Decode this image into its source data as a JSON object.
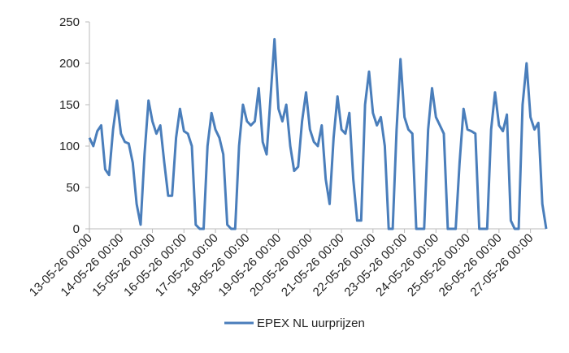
{
  "chart_data": {
    "type": "line",
    "x": [
      "13-05-26 00:00",
      "13-05-26 03:00",
      "13-05-26 06:00",
      "13-05-26 09:00",
      "13-05-26 12:00",
      "13-05-26 15:00",
      "13-05-26 18:00",
      "13-05-26 21:00",
      "14-05-26 00:00",
      "14-05-26 03:00",
      "14-05-26 06:00",
      "14-05-26 09:00",
      "14-05-26 12:00",
      "14-05-26 15:00",
      "14-05-26 18:00",
      "14-05-26 21:00",
      "15-05-26 00:00",
      "15-05-26 03:00",
      "15-05-26 06:00",
      "15-05-26 09:00",
      "15-05-26 12:00",
      "15-05-26 15:00",
      "15-05-26 18:00",
      "15-05-26 21:00",
      "16-05-26 00:00",
      "16-05-26 03:00",
      "16-05-26 06:00",
      "16-05-26 09:00",
      "16-05-26 12:00",
      "16-05-26 15:00",
      "16-05-26 18:00",
      "16-05-26 21:00",
      "17-05-26 00:00",
      "17-05-26 03:00",
      "17-05-26 06:00",
      "17-05-26 09:00",
      "17-05-26 12:00",
      "17-05-26 15:00",
      "17-05-26 18:00",
      "17-05-26 21:00",
      "18-05-26 00:00",
      "18-05-26 03:00",
      "18-05-26 06:00",
      "18-05-26 09:00",
      "18-05-26 12:00",
      "18-05-26 15:00",
      "18-05-26 18:00",
      "18-05-26 21:00",
      "19-05-26 00:00",
      "19-05-26 03:00",
      "19-05-26 06:00",
      "19-05-26 09:00",
      "19-05-26 12:00",
      "19-05-26 15:00",
      "19-05-26 18:00",
      "19-05-26 21:00",
      "20-05-26 00:00",
      "20-05-26 03:00",
      "20-05-26 06:00",
      "20-05-26 09:00",
      "20-05-26 12:00",
      "20-05-26 15:00",
      "20-05-26 18:00",
      "20-05-26 21:00",
      "21-05-26 00:00",
      "21-05-26 03:00",
      "21-05-26 06:00",
      "21-05-26 09:00",
      "21-05-26 12:00",
      "21-05-26 15:00",
      "21-05-26 18:00",
      "21-05-26 21:00",
      "22-05-26 00:00",
      "22-05-26 03:00",
      "22-05-26 06:00",
      "22-05-26 09:00",
      "22-05-26 12:00",
      "22-05-26 15:00",
      "22-05-26 18:00",
      "22-05-26 21:00",
      "23-05-26 00:00",
      "23-05-26 03:00",
      "23-05-26 06:00",
      "23-05-26 09:00",
      "23-05-26 12:00",
      "23-05-26 15:00",
      "23-05-26 18:00",
      "23-05-26 21:00",
      "24-05-26 00:00",
      "24-05-26 03:00",
      "24-05-26 06:00",
      "24-05-26 09:00",
      "24-05-26 12:00",
      "24-05-26 15:00",
      "24-05-26 18:00",
      "24-05-26 21:00",
      "25-05-26 00:00",
      "25-05-26 03:00",
      "25-05-26 06:00",
      "25-05-26 09:00",
      "25-05-26 12:00",
      "25-05-26 15:00",
      "25-05-26 18:00",
      "25-05-26 21:00",
      "26-05-26 00:00",
      "26-05-26 03:00",
      "26-05-26 06:00",
      "26-05-26 09:00",
      "26-05-26 12:00",
      "26-05-26 15:00",
      "26-05-26 18:00",
      "26-05-26 21:00",
      "27-05-26 00:00",
      "27-05-26 03:00",
      "27-05-26 06:00",
      "27-05-26 09:00",
      "27-05-26 12:00"
    ],
    "series": [
      {
        "name": "EPEX NL uurprijzen",
        "color": "#4a7ebb",
        "values": [
          110,
          100,
          118,
          125,
          72,
          65,
          120,
          155,
          115,
          105,
          103,
          80,
          30,
          5,
          90,
          155,
          130,
          115,
          125,
          80,
          40,
          40,
          110,
          145,
          118,
          115,
          100,
          5,
          0,
          0,
          100,
          140,
          120,
          110,
          90,
          5,
          0,
          0,
          100,
          150,
          130,
          125,
          130,
          170,
          105,
          90,
          160,
          229,
          145,
          130,
          150,
          100,
          70,
          75,
          130,
          165,
          120,
          105,
          100,
          125,
          60,
          30,
          110,
          160,
          120,
          115,
          140,
          60,
          10,
          10,
          150,
          190,
          140,
          125,
          135,
          100,
          0,
          0,
          120,
          205,
          135,
          120,
          115,
          0,
          0,
          0,
          120,
          170,
          135,
          125,
          115,
          0,
          0,
          0,
          80,
          145,
          120,
          118,
          115,
          0,
          0,
          0,
          120,
          165,
          125,
          118,
          138,
          10,
          0,
          0,
          150,
          200,
          135,
          120,
          128,
          30,
          0
        ]
      }
    ],
    "xlim": [
      "13-05-26 00:00",
      "27-05-26 12:00"
    ],
    "xticks": [
      "13-05-26 00:00",
      "14-05-26 00:00",
      "15-05-26 00:00",
      "16-05-26 00:00",
      "17-05-26 00:00",
      "18-05-26 00:00",
      "19-05-26 00:00",
      "20-05-26 00:00",
      "21-05-26 00:00",
      "22-05-26 00:00",
      "23-05-26 00:00",
      "24-05-26 00:00",
      "25-05-26 00:00",
      "26-05-26 00:00",
      "27-05-26 00:00"
    ],
    "ylim": [
      0,
      250
    ],
    "yticks": [
      0,
      50,
      100,
      150,
      200,
      250
    ],
    "grid": false,
    "legend": "bottom"
  }
}
